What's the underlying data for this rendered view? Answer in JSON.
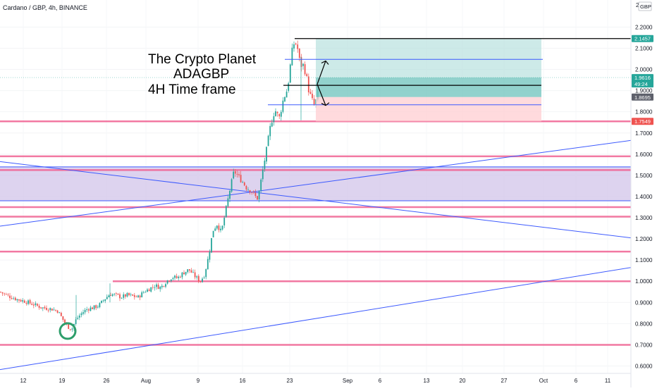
{
  "header": {
    "symbol": "Cardano / GBP, 4h, BINANCE"
  },
  "annotation": {
    "line1": "The Crypto Planet",
    "line2": "ADAGBP",
    "line3": "4H Time frame"
  },
  "currency": "GBP",
  "colors": {
    "up": "#26a69a",
    "down": "#ef5350",
    "support_lines": "#f06292",
    "trend_lines": "#3d5afe",
    "zone_fill": "#d1c4e9",
    "profit_zone": "#b2dfdb",
    "loss_zone": "#ffcdd2",
    "circle": "#2e9e6b"
  },
  "chart_data": {
    "type": "candlestick",
    "timeframe": "4h",
    "exchange": "BINANCE",
    "pair": "ADA/GBP",
    "ylim": [
      0.56,
      2.25
    ],
    "y_ticks": [
      "2.2000",
      "2.1000",
      "2.0000",
      "1.9000",
      "1.8000",
      "1.7000",
      "1.6000",
      "1.5000",
      "1.4000",
      "1.3000",
      "1.2000",
      "1.1000",
      "1.0000",
      "0.9000",
      "0.8000",
      "0.7000",
      "0.6000"
    ],
    "top_tick": "2.",
    "x_ticks": [
      "12",
      "19",
      "26",
      "Aug",
      "9",
      "16",
      "23",
      "Sep",
      "6",
      "13",
      "20",
      "27",
      "Oct",
      "6",
      "11"
    ],
    "price_labels": [
      {
        "value": 2.1457,
        "label": "2.1457",
        "bg": "#26a69a"
      },
      {
        "value": 1.9616,
        "label": "1.9616",
        "bg": "#26a69a"
      },
      {
        "value": 1.9616,
        "label": "49:24",
        "bg": "#26a69a"
      },
      {
        "value": 1.8695,
        "label": "1.8695",
        "bg": "#5d606b"
      },
      {
        "value": 1.7549,
        "label": "1.7549",
        "bg": "#ef5350"
      }
    ],
    "horizontal_levels": [
      1.7549,
      1.59,
      1.525,
      1.35,
      1.305,
      1.14,
      1.0,
      0.7
    ],
    "black_levels": [
      2.1457,
      1.925
    ],
    "blue_levels": [
      2.0475,
      1.8329
    ],
    "zone": [
      1.38,
      1.54
    ],
    "long_position": {
      "entry": 1.8695,
      "target": 2.1457,
      "stop": 1.7549
    },
    "trend_lines": [
      {
        "from": [
          0,
          1.565
        ],
        "to": [
          895,
          1.205
        ]
      },
      {
        "from": [
          0,
          1.26
        ],
        "to": [
          895,
          1.665
        ]
      },
      {
        "from": [
          0,
          0.583
        ],
        "to": [
          895,
          1.065
        ]
      }
    ],
    "price_path": [
      [
        0,
        0.95
      ],
      [
        12,
        0.93
      ],
      [
        24,
        0.915
      ],
      [
        36,
        0.905
      ],
      [
        48,
        0.89
      ],
      [
        60,
        0.875
      ],
      [
        72,
        0.87
      ],
      [
        82,
        0.86
      ],
      [
        90,
        0.815
      ],
      [
        96,
        0.785
      ],
      [
        102,
        0.775
      ],
      [
        108,
        0.82
      ],
      [
        116,
        0.85
      ],
      [
        124,
        0.87
      ],
      [
        132,
        0.875
      ],
      [
        140,
        0.885
      ],
      [
        148,
        0.915
      ],
      [
        156,
        0.94
      ],
      [
        164,
        0.935
      ],
      [
        172,
        0.925
      ],
      [
        180,
        0.935
      ],
      [
        188,
        0.93
      ],
      [
        196,
        0.925
      ],
      [
        204,
        0.95
      ],
      [
        212,
        0.965
      ],
      [
        220,
        0.98
      ],
      [
        228,
        0.97
      ],
      [
        236,
        1.0
      ],
      [
        244,
        1.02
      ],
      [
        252,
        1.015
      ],
      [
        260,
        1.04
      ],
      [
        268,
        1.055
      ],
      [
        276,
        1.025
      ],
      [
        284,
        1.0
      ],
      [
        290,
        1.03
      ],
      [
        296,
        1.12
      ],
      [
        302,
        1.24
      ],
      [
        308,
        1.27
      ],
      [
        314,
        1.23
      ],
      [
        320,
        1.33
      ],
      [
        326,
        1.43
      ],
      [
        332,
        1.52
      ],
      [
        338,
        1.495
      ],
      [
        344,
        1.47
      ],
      [
        350,
        1.44
      ],
      [
        356,
        1.43
      ],
      [
        362,
        1.4
      ],
      [
        366,
        1.39
      ],
      [
        372,
        1.51
      ],
      [
        378,
        1.62
      ],
      [
        384,
        1.74
      ],
      [
        390,
        1.81
      ],
      [
        396,
        1.77
      ],
      [
        402,
        1.86
      ],
      [
        408,
        1.91
      ],
      [
        414,
        2.08
      ],
      [
        418,
        2.135
      ],
      [
        422,
        2.1
      ],
      [
        426,
        2.02
      ],
      [
        430,
        2.02
      ],
      [
        434,
        1.98
      ],
      [
        438,
        1.9
      ],
      [
        442,
        1.86
      ],
      [
        446,
        1.83
      ],
      [
        450,
        1.87
      ],
      [
        453,
        1.9616
      ]
    ]
  }
}
